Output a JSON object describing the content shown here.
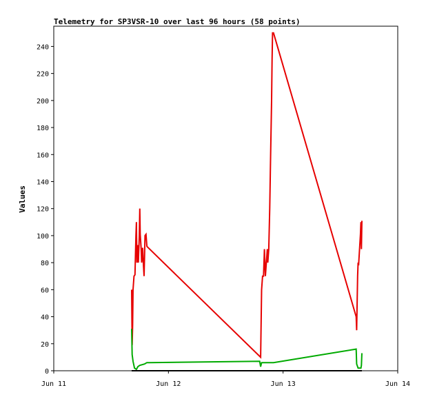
{
  "chart_data": {
    "type": "line",
    "title": "Telemetry for SP3VSR-10 over last 96 hours (58 points)",
    "xlabel": "",
    "ylabel": "Values",
    "xlim": [
      0,
      72
    ],
    "ylim": [
      0,
      255
    ],
    "x_unit": "hours since Jun 11 00:00",
    "x_ticks": [
      {
        "value": 0,
        "label": "Jun 11"
      },
      {
        "value": 24,
        "label": "Jun 12"
      },
      {
        "value": 48,
        "label": "Jun 13"
      },
      {
        "value": 72,
        "label": "Jun 14"
      }
    ],
    "y_ticks": [
      0,
      20,
      40,
      60,
      80,
      100,
      120,
      140,
      160,
      180,
      200,
      220,
      240
    ],
    "grid": false,
    "series": [
      {
        "color": "#e60000",
        "points": [
          [
            16.3,
            60
          ],
          [
            16.4,
            19
          ],
          [
            16.5,
            34
          ],
          [
            16.6,
            60
          ],
          [
            16.8,
            70
          ],
          [
            17.0,
            71
          ],
          [
            17.2,
            100
          ],
          [
            17.3,
            110
          ],
          [
            17.4,
            80
          ],
          [
            17.5,
            82
          ],
          [
            17.6,
            93
          ],
          [
            17.7,
            80
          ],
          [
            17.8,
            90
          ],
          [
            17.9,
            100
          ],
          [
            18.0,
            120
          ],
          [
            18.1,
            101
          ],
          [
            18.3,
            90
          ],
          [
            18.4,
            80
          ],
          [
            18.6,
            91
          ],
          [
            18.7,
            83
          ],
          [
            18.9,
            70
          ],
          [
            19.1,
            100
          ],
          [
            19.3,
            101
          ],
          [
            19.5,
            92
          ],
          [
            43.3,
            10
          ],
          [
            43.5,
            60
          ],
          [
            43.7,
            70
          ],
          [
            43.9,
            70
          ],
          [
            44.1,
            90
          ],
          [
            44.3,
            70
          ],
          [
            44.5,
            80
          ],
          [
            44.7,
            90
          ],
          [
            44.8,
            80
          ],
          [
            45.0,
            90
          ],
          [
            45.2,
            120
          ],
          [
            45.4,
            160
          ],
          [
            45.6,
            200
          ],
          [
            45.7,
            230
          ],
          [
            45.8,
            250
          ],
          [
            46.0,
            250
          ],
          [
            63.3,
            40
          ],
          [
            63.4,
            30
          ],
          [
            63.6,
            70
          ],
          [
            63.7,
            80
          ],
          [
            63.8,
            78
          ],
          [
            64.0,
            90
          ],
          [
            64.2,
            101
          ],
          [
            64.3,
            110
          ],
          [
            64.4,
            90
          ],
          [
            64.5,
            111
          ]
        ]
      },
      {
        "color": "#00aa00",
        "points": [
          [
            16.3,
            31
          ],
          [
            16.4,
            12
          ],
          [
            16.6,
            7
          ],
          [
            16.9,
            2
          ],
          [
            17.3,
            1
          ],
          [
            17.6,
            3
          ],
          [
            18.0,
            4
          ],
          [
            19.0,
            5
          ],
          [
            19.5,
            6
          ],
          [
            20.0,
            6
          ],
          [
            43.1,
            7
          ],
          [
            43.3,
            3
          ],
          [
            43.5,
            6
          ],
          [
            46.0,
            6
          ],
          [
            63.3,
            16
          ],
          [
            63.4,
            5
          ],
          [
            63.7,
            2
          ],
          [
            64.3,
            2
          ],
          [
            64.4,
            4
          ],
          [
            64.5,
            13
          ]
        ]
      },
      {
        "color": "#000000",
        "points": [
          [
            16.3,
            0
          ],
          [
            64.5,
            0
          ]
        ]
      }
    ]
  }
}
